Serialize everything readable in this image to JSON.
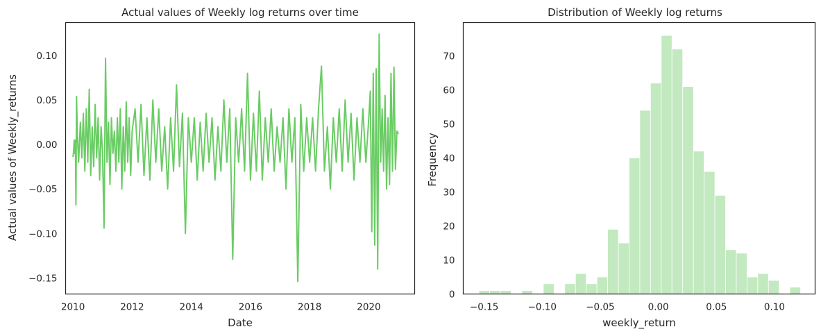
{
  "chart_data": [
    {
      "type": "line",
      "title": "Actual values of Weekly log returns over time",
      "xlabel": "Date",
      "ylabel": "Actual values of Weekly_returns",
      "xlim": [
        2009.75,
        2021.55
      ],
      "ylim": [
        -0.168,
        0.137
      ],
      "xticks": [
        2010,
        2012,
        2014,
        2016,
        2018,
        2020
      ],
      "xtick_labels": [
        "2010",
        "2012",
        "2014",
        "2016",
        "2018",
        "2020"
      ],
      "yticks": [
        -0.15,
        -0.1,
        -0.05,
        0.0,
        0.05,
        0.1
      ],
      "ytick_labels": [
        "−0.15",
        "−0.10",
        "−0.05",
        "0.00",
        "0.05",
        "0.10"
      ],
      "grid": false,
      "color": "#6acc64",
      "series": [
        {
          "x": [
            2010.0,
            2010.02,
            2010.04,
            2010.06,
            2010.08,
            2010.1,
            2010.12,
            2010.15,
            2010.19,
            2010.25,
            2010.3,
            2010.35,
            2010.4,
            2010.45,
            2010.5,
            2010.55,
            2010.6,
            2010.65,
            2010.7,
            2010.75,
            2010.8,
            2010.85,
            2010.9,
            2010.95,
            2011.0,
            2011.05,
            2011.1,
            2011.15,
            2011.2,
            2011.25,
            2011.3,
            2011.35,
            2011.4,
            2011.45,
            2011.5,
            2011.55,
            2011.6,
            2011.65,
            2011.7,
            2011.75,
            2011.8,
            2011.85,
            2011.9,
            2011.95,
            2012.0,
            2012.1,
            2012.2,
            2012.3,
            2012.4,
            2012.5,
            2012.6,
            2012.7,
            2012.8,
            2012.9,
            2013.0,
            2013.1,
            2013.2,
            2013.3,
            2013.4,
            2013.5,
            2013.6,
            2013.7,
            2013.8,
            2013.9,
            2014.0,
            2014.1,
            2014.2,
            2014.3,
            2014.4,
            2014.5,
            2014.6,
            2014.7,
            2014.8,
            2014.9,
            2015.0,
            2015.1,
            2015.2,
            2015.3,
            2015.4,
            2015.5,
            2015.6,
            2015.7,
            2015.8,
            2015.9,
            2016.0,
            2016.1,
            2016.2,
            2016.3,
            2016.4,
            2016.5,
            2016.6,
            2016.7,
            2016.8,
            2016.9,
            2017.0,
            2017.1,
            2017.2,
            2017.3,
            2017.4,
            2017.5,
            2017.6,
            2017.7,
            2017.8,
            2017.9,
            2018.0,
            2018.1,
            2018.2,
            2018.3,
            2018.4,
            2018.5,
            2018.6,
            2018.7,
            2018.8,
            2018.9,
            2019.0,
            2019.1,
            2019.2,
            2019.3,
            2019.4,
            2019.5,
            2019.6,
            2019.7,
            2019.8,
            2019.9,
            2020.0,
            2020.05,
            2020.1,
            2020.15,
            2020.2,
            2020.25,
            2020.3,
            2020.35,
            2020.4,
            2020.45,
            2020.5,
            2020.55,
            2020.6,
            2020.65,
            2020.7,
            2020.75,
            2020.8,
            2020.85,
            2020.9,
            2020.95,
            2021.0
          ],
          "y": [
            -0.014,
            -0.008,
            0.005,
            -0.01,
            0.005,
            -0.068,
            0.054,
            0.01,
            -0.02,
            0.025,
            -0.015,
            0.035,
            -0.03,
            0.04,
            -0.02,
            0.062,
            -0.035,
            0.02,
            -0.025,
            0.045,
            -0.015,
            0.03,
            -0.04,
            0.02,
            -0.01,
            -0.094,
            0.097,
            -0.02,
            0.025,
            -0.045,
            0.03,
            -0.01,
            0.015,
            -0.03,
            0.03,
            -0.02,
            0.04,
            -0.05,
            0.02,
            -0.03,
            0.048,
            -0.02,
            0.03,
            -0.035,
            0.015,
            0.04,
            -0.02,
            0.045,
            -0.035,
            0.03,
            -0.04,
            0.05,
            -0.02,
            0.04,
            -0.03,
            0.02,
            -0.05,
            0.03,
            -0.03,
            0.067,
            -0.025,
            0.035,
            -0.1,
            0.03,
            -0.02,
            0.03,
            -0.04,
            0.025,
            -0.03,
            0.035,
            -0.02,
            0.03,
            -0.04,
            0.02,
            -0.03,
            0.05,
            -0.02,
            0.04,
            -0.129,
            0.03,
            -0.02,
            0.04,
            -0.03,
            0.08,
            -0.04,
            0.035,
            -0.03,
            0.06,
            -0.04,
            0.03,
            -0.02,
            0.04,
            -0.03,
            0.02,
            -0.02,
            0.03,
            -0.05,
            0.04,
            -0.02,
            0.03,
            -0.154,
            0.045,
            -0.03,
            0.03,
            -0.02,
            0.03,
            -0.03,
            0.04,
            0.088,
            -0.03,
            0.02,
            -0.05,
            0.03,
            -0.02,
            0.04,
            -0.03,
            0.05,
            -0.02,
            0.035,
            -0.04,
            0.03,
            -0.02,
            0.04,
            -0.02,
            0.03,
            0.06,
            -0.098,
            0.08,
            -0.113,
            0.085,
            -0.14,
            0.124,
            -0.02,
            0.04,
            -0.03,
            0.055,
            -0.05,
            0.03,
            -0.045,
            0.08,
            -0.03,
            0.087,
            -0.028,
            0.015,
            0.012
          ]
        }
      ]
    },
    {
      "type": "bar",
      "title": "Distribution of Weekly log returns",
      "xlabel": "weekly_return",
      "ylabel": "Frequency",
      "xlim": [
        -0.168,
        0.135
      ],
      "ylim": [
        0,
        79.8
      ],
      "xticks": [
        -0.15,
        -0.1,
        -0.05,
        0.0,
        0.05,
        0.1
      ],
      "xtick_labels": [
        "−0.15",
        "−0.10",
        "−0.05",
        "0.00",
        "0.05",
        "0.10"
      ],
      "yticks": [
        0,
        10,
        20,
        30,
        40,
        50,
        60,
        70
      ],
      "ytick_labels": [
        "0",
        "10",
        "20",
        "30",
        "40",
        "50",
        "60",
        "70"
      ],
      "grid": false,
      "color": "#c2e9bf",
      "bin_edges": [
        -0.1544,
        -0.14517,
        -0.13594,
        -0.12671,
        -0.11748,
        -0.10825,
        -0.09902,
        -0.08979,
        -0.08056,
        -0.07133,
        -0.0621,
        -0.05287,
        -0.04364,
        -0.03441,
        -0.02518,
        -0.01595,
        -0.00672,
        0.00251,
        0.01174,
        0.02097,
        0.0302,
        0.03943,
        0.04866,
        0.05789,
        0.06712,
        0.07635,
        0.08558,
        0.09481,
        0.10404,
        0.11327,
        0.1225
      ],
      "counts": [
        1,
        1,
        1,
        0,
        1,
        0,
        3,
        0,
        3,
        6,
        3,
        5,
        19,
        15,
        40,
        54,
        62,
        76,
        72,
        61,
        42,
        36,
        29,
        13,
        12,
        5,
        6,
        4,
        0,
        2
      ]
    }
  ]
}
